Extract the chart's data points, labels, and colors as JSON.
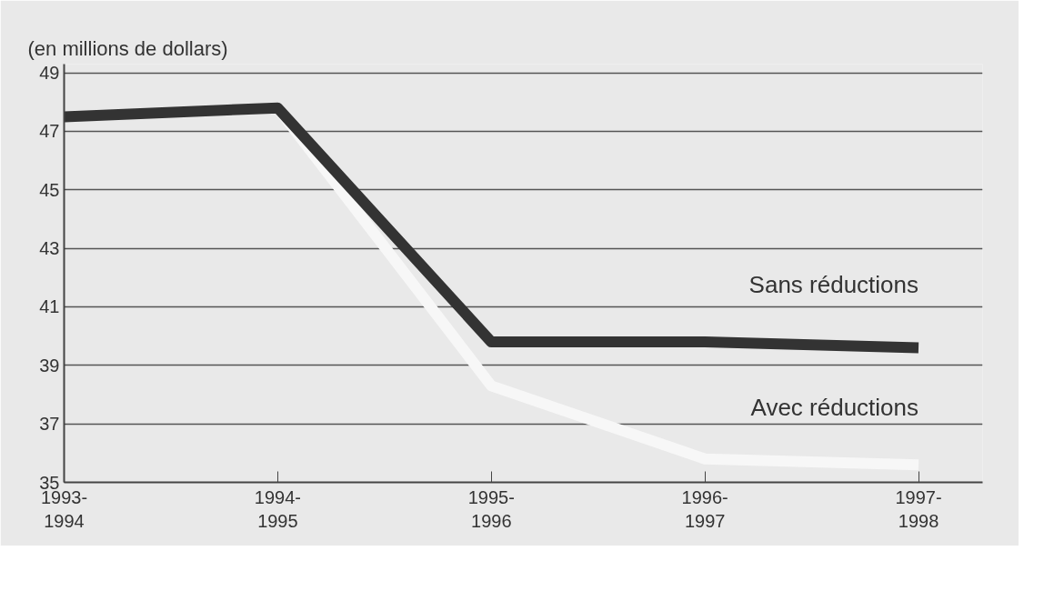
{
  "chart_data": {
    "type": "line",
    "ylabel": "(en millions de dollars)",
    "categories": [
      "1993-1994",
      "1994-1995",
      "1995-1996",
      "1996-1997",
      "1997-1998"
    ],
    "series": [
      {
        "name": "Avec réductions",
        "color": "#f7f7f7",
        "values": [
          null,
          47.8,
          38.3,
          35.8,
          35.6
        ]
      },
      {
        "name": "Sans réductions",
        "color": "#333333",
        "values": [
          47.5,
          47.8,
          39.8,
          39.8,
          39.6
        ]
      }
    ],
    "ylim": [
      35,
      49.3
    ],
    "yticks": [
      35,
      37,
      39,
      41,
      43,
      45,
      47,
      49
    ],
    "grid": "y",
    "marker": "none",
    "line_style": "solid"
  }
}
